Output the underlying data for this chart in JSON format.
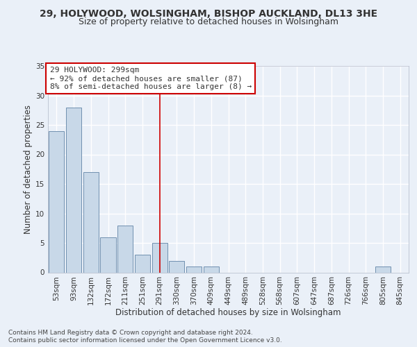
{
  "title1": "29, HOLYWOOD, WOLSINGHAM, BISHOP AUCKLAND, DL13 3HE",
  "title2": "Size of property relative to detached houses in Wolsingham",
  "xlabel": "Distribution of detached houses by size in Wolsingham",
  "ylabel": "Number of detached properties",
  "footnote1": "Contains HM Land Registry data © Crown copyright and database right 2024.",
  "footnote2": "Contains public sector information licensed under the Open Government Licence v3.0.",
  "bin_labels": [
    "53sqm",
    "93sqm",
    "132sqm",
    "172sqm",
    "211sqm",
    "251sqm",
    "291sqm",
    "330sqm",
    "370sqm",
    "409sqm",
    "449sqm",
    "489sqm",
    "528sqm",
    "568sqm",
    "607sqm",
    "647sqm",
    "687sqm",
    "726sqm",
    "766sqm",
    "805sqm",
    "845sqm"
  ],
  "bar_values": [
    24,
    28,
    17,
    6,
    8,
    3,
    5,
    2,
    1,
    1,
    0,
    0,
    0,
    0,
    0,
    0,
    0,
    0,
    0,
    1,
    0
  ],
  "bar_color": "#c8d8e8",
  "bar_edge_color": "#7090b0",
  "vline_x": 6.0,
  "vline_color": "#cc0000",
  "annotation_text": "29 HOLYWOOD: 299sqm\n← 92% of detached houses are smaller (87)\n8% of semi-detached houses are larger (8) →",
  "annotation_box_color": "#ffffff",
  "annotation_box_edge": "#cc0000",
  "ylim": [
    0,
    35
  ],
  "yticks": [
    0,
    5,
    10,
    15,
    20,
    25,
    30,
    35
  ],
  "background_color": "#eaf0f8",
  "plot_bg_color": "#eaf0f8",
  "grid_color": "#ffffff",
  "title1_fontsize": 10,
  "title2_fontsize": 9,
  "axis_label_fontsize": 8.5,
  "tick_fontsize": 7.5,
  "annotation_fontsize": 8,
  "footnote_fontsize": 6.5
}
